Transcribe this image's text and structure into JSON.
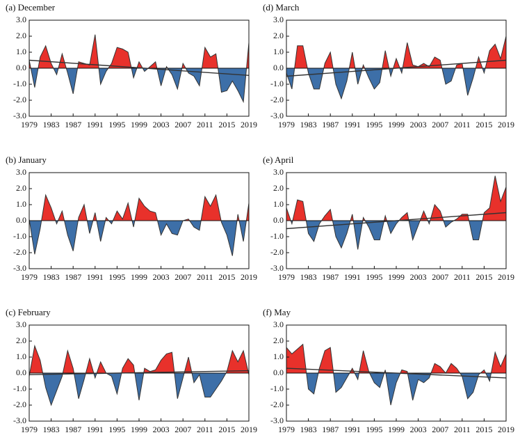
{
  "chart_data": [
    {
      "type": "area",
      "title": "(a) December",
      "x": [
        1979,
        1980,
        1981,
        1982,
        1983,
        1984,
        1985,
        1986,
        1987,
        1988,
        1989,
        1990,
        1991,
        1992,
        1993,
        1994,
        1995,
        1996,
        1997,
        1998,
        1999,
        2000,
        2001,
        2002,
        2003,
        2004,
        2005,
        2006,
        2007,
        2008,
        2009,
        2010,
        2011,
        2012,
        2013,
        2014,
        2015,
        2016,
        2017,
        2018,
        2019
      ],
      "values": [
        0.5,
        -1.2,
        0.7,
        1.4,
        0.3,
        -0.4,
        0.9,
        -0.3,
        -1.6,
        0.4,
        0.3,
        0.2,
        2.1,
        -1.0,
        -0.2,
        0.3,
        1.3,
        1.2,
        1.0,
        -0.6,
        0.4,
        -0.2,
        0.1,
        0.4,
        -1.1,
        0.1,
        -0.4,
        -1.3,
        0.3,
        -0.3,
        -0.5,
        -1.1,
        1.3,
        0.7,
        0.9,
        -1.5,
        -1.4,
        -0.8,
        -1.4,
        -2.1,
        1.6
      ],
      "color_above": "#e8312b",
      "color_below": "#3d6fa8",
      "trend": {
        "x": [
          1979,
          2019
        ],
        "values": [
          0.5,
          -0.45
        ],
        "color": "#333333"
      },
      "xlim": [
        1979,
        2019
      ],
      "xticks": [
        1979,
        1983,
        1987,
        1991,
        1995,
        1999,
        2003,
        2007,
        2011,
        2015,
        2019
      ],
      "ylim": [
        -3,
        3
      ],
      "yticks": [
        {
          "value": -3,
          "label": "-3.0"
        },
        {
          "value": -2,
          "label": "-2.0"
        },
        {
          "value": -1,
          "label": "-1.0"
        },
        {
          "value": 0,
          "label": "0.0"
        },
        {
          "value": 1,
          "label": "1.0"
        },
        {
          "value": 2,
          "label": "2.0"
        },
        {
          "value": 3,
          "label": "3.0"
        }
      ]
    },
    {
      "type": "area",
      "title": "(b) January",
      "x": [
        1979,
        1980,
        1981,
        1982,
        1983,
        1984,
        1985,
        1986,
        1987,
        1988,
        1989,
        1990,
        1991,
        1992,
        1993,
        1994,
        1995,
        1996,
        1997,
        1998,
        1999,
        2000,
        2001,
        2002,
        2003,
        2004,
        2005,
        2006,
        2007,
        2008,
        2009,
        2010,
        2011,
        2012,
        2013,
        2014,
        2015,
        2016,
        2017,
        2018,
        2019
      ],
      "values": [
        0.1,
        -2.1,
        -0.5,
        1.6,
        0.8,
        -0.2,
        0.6,
        -0.9,
        -1.9,
        0.2,
        1.0,
        -0.8,
        0.5,
        -1.3,
        0.2,
        -0.2,
        0.6,
        0.1,
        1.1,
        -0.4,
        1.4,
        0.9,
        0.6,
        0.5,
        -0.9,
        -0.2,
        -0.8,
        -0.9,
        0.0,
        0.1,
        -0.4,
        -0.6,
        1.5,
        0.9,
        1.6,
        -0.1,
        -0.9,
        -2.2,
        0.4,
        -1.3,
        1.1
      ],
      "color_above": "#e8312b",
      "color_below": "#3d6fa8",
      "xlim": [
        1979,
        2019
      ],
      "xticks": [
        1979,
        1983,
        1987,
        1991,
        1995,
        1999,
        2003,
        2007,
        2011,
        2015,
        2019
      ],
      "ylim": [
        -3,
        3
      ],
      "yticks": [
        {
          "value": -3,
          "label": "-3.0"
        },
        {
          "value": -2,
          "label": "-2.0"
        },
        {
          "value": -1,
          "label": "-1.0"
        },
        {
          "value": 0,
          "label": "0.0"
        },
        {
          "value": 1,
          "label": "1.0"
        },
        {
          "value": 2,
          "label": "2.0"
        },
        {
          "value": 3,
          "label": "3.0"
        }
      ]
    },
    {
      "type": "area",
      "title": "(c) February",
      "x": [
        1979,
        1980,
        1981,
        1982,
        1983,
        1984,
        1985,
        1986,
        1987,
        1988,
        1989,
        1990,
        1991,
        1992,
        1993,
        1994,
        1995,
        1996,
        1997,
        1998,
        1999,
        2000,
        2001,
        2002,
        2003,
        2004,
        2005,
        2006,
        2007,
        2008,
        2009,
        2010,
        2011,
        2012,
        2013,
        2014,
        2015,
        2016,
        2017,
        2018,
        2019
      ],
      "values": [
        -0.2,
        1.7,
        0.8,
        -0.9,
        -2.0,
        -1.1,
        -0.2,
        1.4,
        0.3,
        -1.6,
        -0.4,
        0.9,
        -0.3,
        0.7,
        0.0,
        -0.2,
        -1.3,
        0.3,
        0.9,
        0.5,
        -1.7,
        0.3,
        0.1,
        0.2,
        0.8,
        1.2,
        1.3,
        -1.6,
        -0.3,
        1.0,
        -0.6,
        -0.1,
        -1.5,
        -1.5,
        -1.0,
        -0.5,
        0.1,
        1.4,
        0.7,
        1.4,
        -0.1
      ],
      "color_above": "#e8312b",
      "color_below": "#3d6fa8",
      "trend": {
        "x": [
          1979,
          2019
        ],
        "values": [
          -0.1,
          0.15
        ],
        "color": "#333333"
      },
      "xlim": [
        1979,
        2019
      ],
      "xticks": [
        1979,
        1983,
        1987,
        1991,
        1995,
        1999,
        2003,
        2007,
        2011,
        2015,
        2019
      ],
      "ylim": [
        -3,
        3
      ],
      "yticks": [
        {
          "value": -3,
          "label": "-3.0"
        },
        {
          "value": -2,
          "label": "-2.0"
        },
        {
          "value": -1,
          "label": "-1.0"
        },
        {
          "value": 0,
          "label": "0.0"
        },
        {
          "value": 1,
          "label": "1.0"
        },
        {
          "value": 2,
          "label": "2.0"
        },
        {
          "value": 3,
          "label": "3.0"
        }
      ]
    },
    {
      "type": "area",
      "title": "(d) March",
      "x": [
        1979,
        1980,
        1981,
        1982,
        1983,
        1984,
        1985,
        1986,
        1987,
        1988,
        1989,
        1990,
        1991,
        1992,
        1993,
        1994,
        1995,
        1996,
        1997,
        1998,
        1999,
        2000,
        2001,
        2002,
        2003,
        2004,
        2005,
        2006,
        2007,
        2008,
        2009,
        2010,
        2011,
        2012,
        2013,
        2014,
        2015,
        2016,
        2017,
        2018,
        2019
      ],
      "values": [
        -0.3,
        -1.3,
        1.4,
        1.4,
        -0.3,
        -1.3,
        -1.3,
        0.3,
        1.0,
        -1.0,
        -1.9,
        -0.8,
        1.0,
        -1.0,
        0.2,
        -0.6,
        -1.3,
        -0.9,
        1.1,
        -0.5,
        0.6,
        -0.3,
        1.6,
        0.2,
        0.1,
        0.3,
        0.1,
        0.7,
        0.5,
        -1.0,
        -0.8,
        0.2,
        0.3,
        -1.7,
        -0.6,
        0.7,
        -0.3,
        1.1,
        1.5,
        0.6,
        2.0
      ],
      "color_above": "#e8312b",
      "color_below": "#3d6fa8",
      "trend": {
        "x": [
          1979,
          2019
        ],
        "values": [
          -0.5,
          0.5
        ],
        "color": "#333333"
      },
      "xlim": [
        1979,
        2019
      ],
      "xticks": [
        1979,
        1983,
        1987,
        1991,
        1995,
        1999,
        2003,
        2007,
        2011,
        2015,
        2019
      ],
      "ylim": [
        -3,
        3
      ],
      "yticks": [
        {
          "value": -3,
          "label": "-3.0"
        },
        {
          "value": -2,
          "label": "-2.0"
        },
        {
          "value": -1,
          "label": "-1.0"
        },
        {
          "value": 0,
          "label": "0.0"
        },
        {
          "value": 1,
          "label": "1.0"
        },
        {
          "value": 2,
          "label": "2.0"
        },
        {
          "value": 3,
          "label": "3.0"
        }
      ]
    },
    {
      "type": "area",
      "title": "(e) April",
      "x": [
        1979,
        1980,
        1981,
        1982,
        1983,
        1984,
        1985,
        1986,
        1987,
        1988,
        1989,
        1990,
        1991,
        1992,
        1993,
        1994,
        1995,
        1996,
        1997,
        1998,
        1999,
        2000,
        2001,
        2002,
        2003,
        2004,
        2005,
        2006,
        2007,
        2008,
        2009,
        2010,
        2011,
        2012,
        2013,
        2014,
        2015,
        2016,
        2017,
        2018,
        2019
      ],
      "values": [
        0.8,
        -0.2,
        1.3,
        1.2,
        -0.8,
        -1.3,
        -0.2,
        0.3,
        0.7,
        -1.0,
        -1.7,
        -0.8,
        0.4,
        -1.8,
        0.2,
        -0.4,
        -1.2,
        -1.2,
        0.3,
        -0.8,
        -0.2,
        0.2,
        0.5,
        -1.2,
        -0.3,
        0.6,
        -0.2,
        1.0,
        0.6,
        -0.4,
        -0.1,
        0.1,
        0.4,
        0.4,
        -1.2,
        -1.2,
        0.5,
        0.8,
        2.8,
        1.2,
        2.1
      ],
      "color_above": "#e8312b",
      "color_below": "#3d6fa8",
      "trend": {
        "x": [
          1979,
          2019
        ],
        "values": [
          -0.5,
          0.5
        ],
        "color": "#333333"
      },
      "xlim": [
        1979,
        2019
      ],
      "xticks": [
        1979,
        1983,
        1987,
        1991,
        1995,
        1999,
        2003,
        2007,
        2011,
        2015,
        2019
      ],
      "ylim": [
        -3,
        3
      ],
      "yticks": [
        {
          "value": -3,
          "label": "-3.0"
        },
        {
          "value": -2,
          "label": "-2.0"
        },
        {
          "value": -1,
          "label": "-1.0"
        },
        {
          "value": 0,
          "label": "0.0"
        },
        {
          "value": 1,
          "label": "1.0"
        },
        {
          "value": 2,
          "label": "2.0"
        },
        {
          "value": 3,
          "label": "3.0"
        }
      ]
    },
    {
      "type": "area",
      "title": "(f) May",
      "x": [
        1979,
        1980,
        1981,
        1982,
        1983,
        1984,
        1985,
        1986,
        1987,
        1988,
        1989,
        1990,
        1991,
        1992,
        1993,
        1994,
        1995,
        1996,
        1997,
        1998,
        1999,
        2000,
        2001,
        2002,
        2003,
        2004,
        2005,
        2006,
        2007,
        2008,
        2009,
        2010,
        2011,
        2012,
        2013,
        2014,
        2015,
        2016,
        2017,
        2018,
        2019
      ],
      "values": [
        1.6,
        1.2,
        1.5,
        1.8,
        -1.0,
        -1.3,
        0.3,
        1.4,
        1.6,
        -1.2,
        -0.9,
        -0.3,
        0.3,
        -0.4,
        1.4,
        0.1,
        -0.6,
        -0.9,
        0.2,
        -2.0,
        -0.6,
        0.2,
        0.1,
        -1.7,
        -0.4,
        -0.6,
        -0.3,
        0.6,
        0.4,
        0.0,
        0.6,
        0.3,
        -0.2,
        -1.6,
        -1.2,
        -0.1,
        0.2,
        -0.5,
        1.3,
        0.4,
        1.2
      ],
      "color_above": "#e8312b",
      "color_below": "#3d6fa8",
      "trend": {
        "x": [
          1979,
          2019
        ],
        "values": [
          0.3,
          -0.3
        ],
        "color": "#333333"
      },
      "xlim": [
        1979,
        2019
      ],
      "xticks": [
        1979,
        1983,
        1987,
        1991,
        1995,
        1999,
        2003,
        2007,
        2011,
        2015,
        2019
      ],
      "ylim": [
        -3,
        3
      ],
      "yticks": [
        {
          "value": -3,
          "label": "-3.0"
        },
        {
          "value": -2,
          "label": "-2.0"
        },
        {
          "value": -1,
          "label": "-1.0"
        },
        {
          "value": 0,
          "label": "0.0"
        },
        {
          "value": 1,
          "label": "1.0"
        },
        {
          "value": 2,
          "label": "2.0"
        },
        {
          "value": 3,
          "label": "3.0"
        }
      ]
    }
  ]
}
